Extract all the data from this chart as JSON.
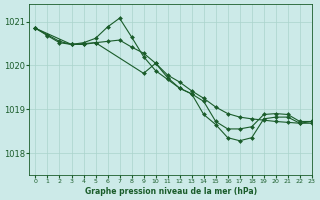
{
  "title": "Graphe pression niveau de la mer (hPa)",
  "bg_color": "#cceae8",
  "grid_color": "#aad4cc",
  "line_color": "#1a5c2a",
  "marker_color": "#1a5c2a",
  "xlim": [
    -0.5,
    23
  ],
  "ylim": [
    1017.5,
    1021.4
  ],
  "yticks": [
    1018,
    1019,
    1020,
    1021
  ],
  "xticks": [
    0,
    1,
    2,
    3,
    4,
    5,
    6,
    7,
    8,
    9,
    10,
    11,
    12,
    13,
    14,
    15,
    16,
    17,
    18,
    19,
    20,
    21,
    22,
    23
  ],
  "line1_x": [
    0,
    1,
    2,
    3,
    4,
    5,
    6,
    7,
    8,
    9,
    10,
    11,
    12,
    13,
    14,
    15,
    16,
    17,
    18,
    19,
    20,
    21,
    22,
    23
  ],
  "line1": [
    1020.85,
    1020.7,
    1020.55,
    1020.48,
    1020.5,
    1020.52,
    1020.55,
    1020.58,
    1020.42,
    1020.28,
    1020.05,
    1019.78,
    1019.62,
    1019.42,
    1019.25,
    1019.05,
    1018.9,
    1018.82,
    1018.78,
    1018.75,
    1018.72,
    1018.7,
    1018.68,
    1018.68
  ],
  "line2_x": [
    0,
    1,
    2,
    3,
    4,
    5,
    6,
    7,
    8,
    9,
    10,
    11,
    12,
    13,
    14,
    15,
    16,
    17,
    18,
    19,
    20,
    21,
    22,
    23
  ],
  "line2": [
    1020.85,
    1020.68,
    1020.52,
    1020.48,
    1020.52,
    1020.62,
    1020.88,
    1021.08,
    1020.65,
    1020.2,
    1019.88,
    1019.68,
    1019.48,
    1019.35,
    1019.18,
    1018.72,
    1018.55,
    1018.55,
    1018.6,
    1018.88,
    1018.9,
    1018.88,
    1018.72,
    1018.72
  ],
  "line3_x": [
    0,
    3,
    4,
    5,
    9,
    10,
    11,
    12,
    13,
    14,
    15,
    16,
    17,
    18,
    19,
    20,
    21,
    22,
    23
  ],
  "line3": [
    1020.85,
    1020.48,
    1020.48,
    1020.52,
    1019.82,
    1020.05,
    1019.72,
    1019.48,
    1019.35,
    1018.88,
    1018.65,
    1018.35,
    1018.28,
    1018.35,
    1018.78,
    1018.82,
    1018.82,
    1018.68,
    1018.72
  ]
}
